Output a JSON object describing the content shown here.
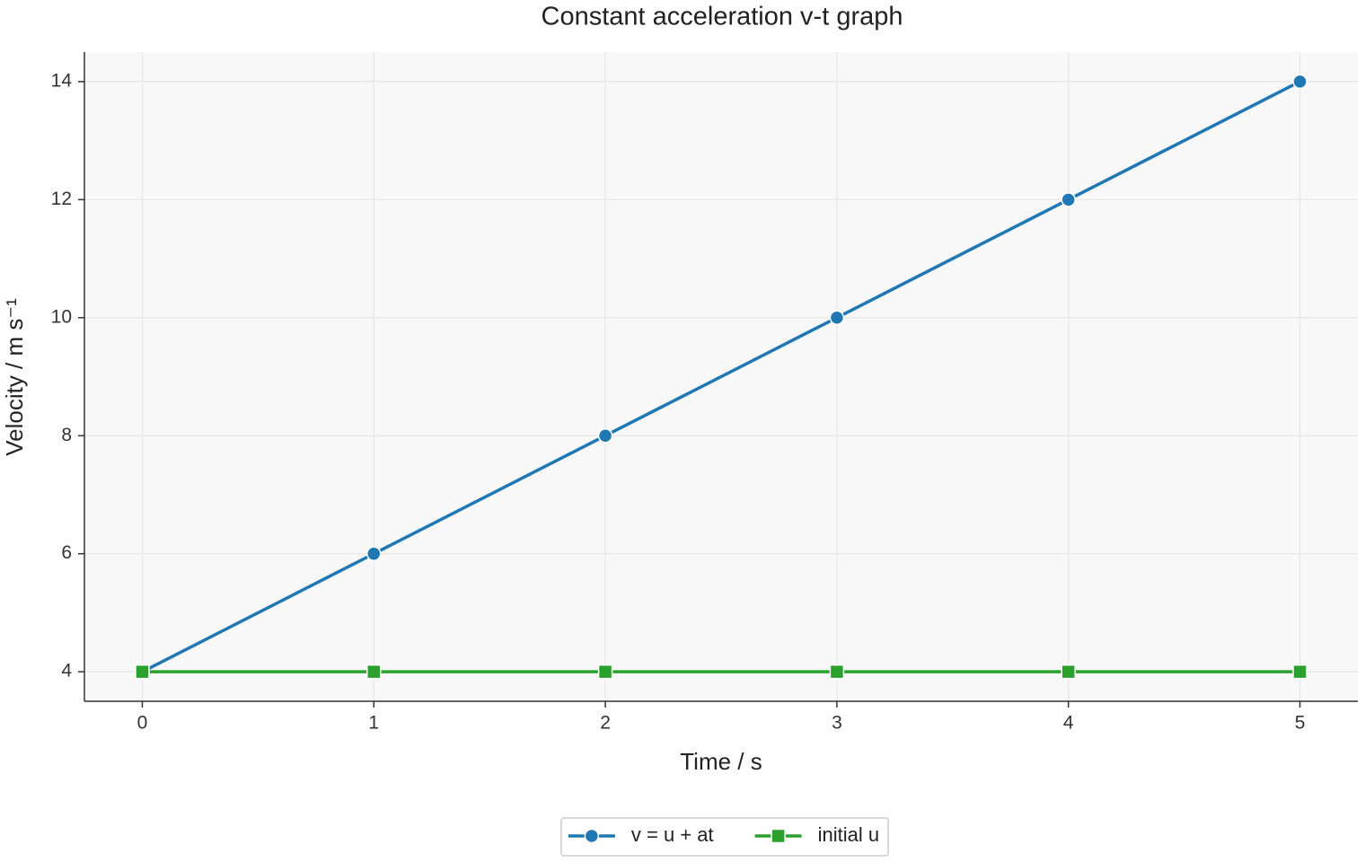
{
  "chart_data": {
    "type": "line",
    "title": "Constant acceleration v-t graph",
    "xlabel": "Time / s",
    "ylabel": "Velocity / m s⁻¹",
    "x": [
      0,
      1,
      2,
      3,
      4,
      5
    ],
    "series": [
      {
        "name": "v = u + at",
        "color": "#1f77b4",
        "marker": "circle",
        "values": [
          4,
          6,
          8,
          10,
          12,
          14
        ]
      },
      {
        "name": "initial u",
        "color": "#2ca02c",
        "marker": "square",
        "values": [
          4,
          4,
          4,
          4,
          4,
          4
        ]
      }
    ],
    "xlim": [
      -0.25,
      5.25
    ],
    "xticks": [
      0,
      1,
      2,
      3,
      4,
      5
    ],
    "ylim": [
      3.5,
      14.5
    ],
    "yticks": [
      4,
      6,
      8,
      10,
      12,
      14
    ],
    "grid": true,
    "legend": "bottom"
  }
}
